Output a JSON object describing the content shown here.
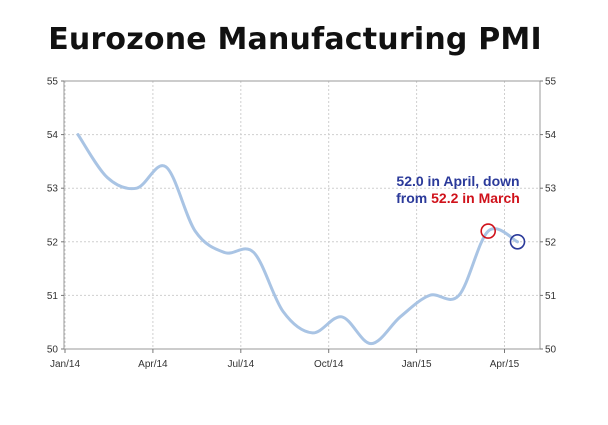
{
  "title": "Eurozone Manufacturing PMI",
  "colors": {
    "line": "#a9c4e4",
    "annotation_blue": "#2b3a9a",
    "annotation_red": "#d0121b",
    "grid": "#cfcfcf"
  },
  "annotation": {
    "line1": "52.0 in April, down",
    "line2_prefix": "from ",
    "line2_value": "52.2 in March"
  },
  "chart_data": {
    "type": "line",
    "title": "Eurozone Manufacturing PMI",
    "xlabel": "",
    "ylabel": "",
    "ylim": [
      50,
      55
    ],
    "yticks": [
      "50",
      "51",
      "52",
      "53",
      "54",
      "55"
    ],
    "xticks": [
      "Jan/14",
      "Apr/14",
      "Jul/14",
      "Oct/14",
      "Jan/15",
      "Apr/15"
    ],
    "grid": true,
    "series": [
      {
        "x": [
          "2014-01",
          "2014-02",
          "2014-03",
          "2014-04",
          "2014-05",
          "2014-06",
          "2014-07",
          "2014-08",
          "2014-09",
          "2014-10",
          "2014-11",
          "2014-12",
          "2015-01",
          "2015-02",
          "2015-03",
          "2015-04"
        ],
        "values": [
          54.0,
          53.2,
          53.0,
          53.4,
          52.2,
          51.8,
          51.8,
          50.7,
          50.3,
          50.6,
          50.1,
          50.6,
          51.0,
          51.0,
          52.2,
          52.0
        ]
      }
    ],
    "highlights": [
      {
        "x": "2015-03",
        "value": 52.2,
        "color": "#d0121b"
      },
      {
        "x": "2015-04",
        "value": 52.0,
        "color": "#2b3a9a"
      }
    ]
  }
}
